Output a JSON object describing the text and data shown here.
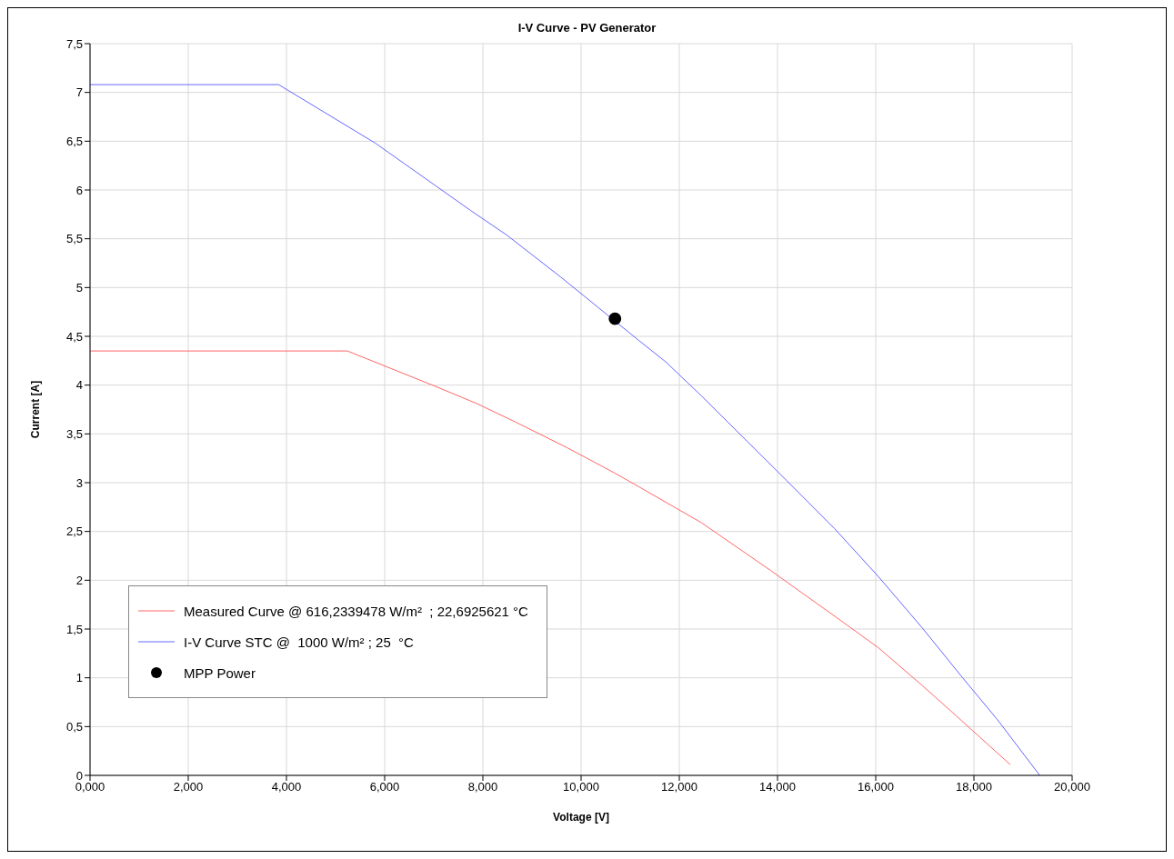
{
  "chart_data": {
    "type": "line",
    "title": "I-V Curve - PV Generator",
    "xlabel": "Voltage [V]",
    "ylabel": "Current [A]",
    "xlim": [
      0,
      20
    ],
    "xticks": [
      {
        "value": 0,
        "label": "0,000"
      },
      {
        "value": 2,
        "label": "2,000"
      },
      {
        "value": 4,
        "label": "4,000"
      },
      {
        "value": 6,
        "label": "6,000"
      },
      {
        "value": 8,
        "label": "8,000"
      },
      {
        "value": 10,
        "label": "10,000"
      },
      {
        "value": 12,
        "label": "12,000"
      },
      {
        "value": 14,
        "label": "14,000"
      },
      {
        "value": 16,
        "label": "16,000"
      },
      {
        "value": 18,
        "label": "18,000"
      },
      {
        "value": 20,
        "label": "20,000"
      }
    ],
    "ylim": [
      0,
      7.5
    ],
    "yticks": [
      0,
      {
        "value": 0.5,
        "label": "0,5"
      },
      1,
      {
        "value": 1.5,
        "label": "1,5"
      },
      2,
      {
        "value": 2.5,
        "label": "2,5"
      },
      3,
      {
        "value": 3.5,
        "label": "3,5"
      },
      4,
      {
        "value": 4.5,
        "label": "4,5"
      },
      5,
      {
        "value": 5.5,
        "label": "5,5"
      },
      6,
      {
        "value": 6.5,
        "label": "6,5"
      },
      7,
      {
        "value": 7.5,
        "label": "7,5"
      }
    ],
    "grid": true,
    "legend": "bottom left",
    "line_style": "solid",
    "series": [
      {
        "name": "Measured Curve @ 616,2339478 W/m²  ; 22,6925621 °C",
        "color": "#ff6666",
        "marker": "none",
        "x": [
          0,
          5.24,
          7.02,
          7.88,
          8.67,
          9.71,
          10.68,
          11.17,
          12.45,
          13.86,
          15.28,
          16.05,
          16.95,
          17.64,
          18.74
        ],
        "values": [
          4.35,
          4.35,
          3.99,
          3.81,
          3.62,
          3.36,
          3.1,
          2.96,
          2.59,
          2.1,
          1.59,
          1.31,
          0.92,
          0.61,
          0.11
        ]
      },
      {
        "name": "I-V Curve STC @  1000 W/m² ; 25  °C",
        "color": "#6666ff",
        "marker": "none",
        "x": [
          0,
          3.84,
          5.81,
          7.75,
          8.48,
          9.58,
          11.17,
          11.72,
          12.45,
          14.19,
          15.16,
          16.05,
          16.95,
          17.77,
          18.48,
          19.34
        ],
        "values": [
          7.08,
          7.08,
          6.48,
          5.79,
          5.54,
          5.11,
          4.46,
          4.24,
          3.89,
          3.02,
          2.53,
          2.04,
          1.51,
          1.0,
          0.57,
          0
        ]
      },
      {
        "name": "MPP Power",
        "type": "scatter",
        "color": "#000000",
        "marker": "circle",
        "x": [
          10.69
        ],
        "values": [
          4.68
        ]
      }
    ]
  }
}
